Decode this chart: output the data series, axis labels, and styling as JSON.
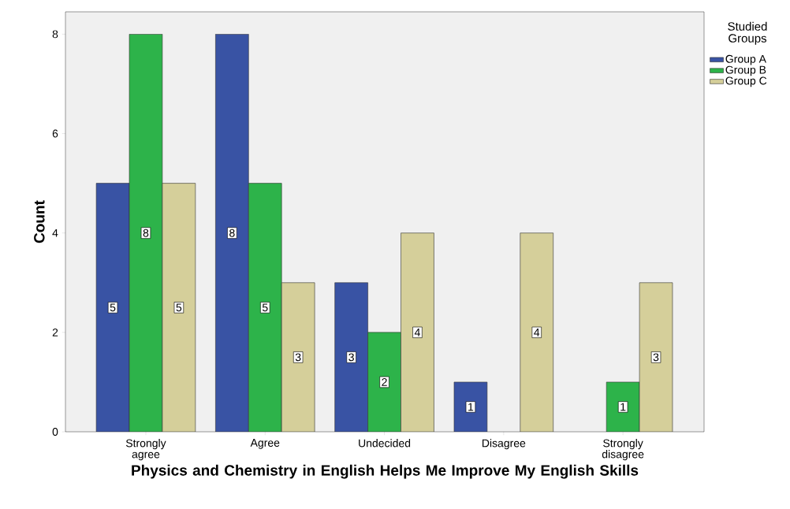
{
  "chart_data": {
    "type": "bar",
    "xlabel": "Physics and Chemistry in English Helps Me Improve My English Skills",
    "ylabel": "Count",
    "legend_title": "Studied Groups",
    "categories": [
      "Strongly agree",
      "Agree",
      "Undecided",
      "Disagree",
      "Strongly disagree"
    ],
    "series": [
      {
        "name": "Group A",
        "color": "#3953a4",
        "values": [
          5,
          8,
          3,
          1,
          null
        ]
      },
      {
        "name": "Group B",
        "color": "#2db34a",
        "values": [
          8,
          5,
          2,
          null,
          1
        ]
      },
      {
        "name": "Group C",
        "color": "#d5cf9a",
        "values": [
          5,
          3,
          4,
          4,
          3
        ]
      }
    ],
    "ylim": [
      0,
      8.45
    ],
    "yticks": [
      0,
      2,
      4,
      6,
      8
    ],
    "data_labels": true,
    "legend": "top right",
    "grid": false
  }
}
